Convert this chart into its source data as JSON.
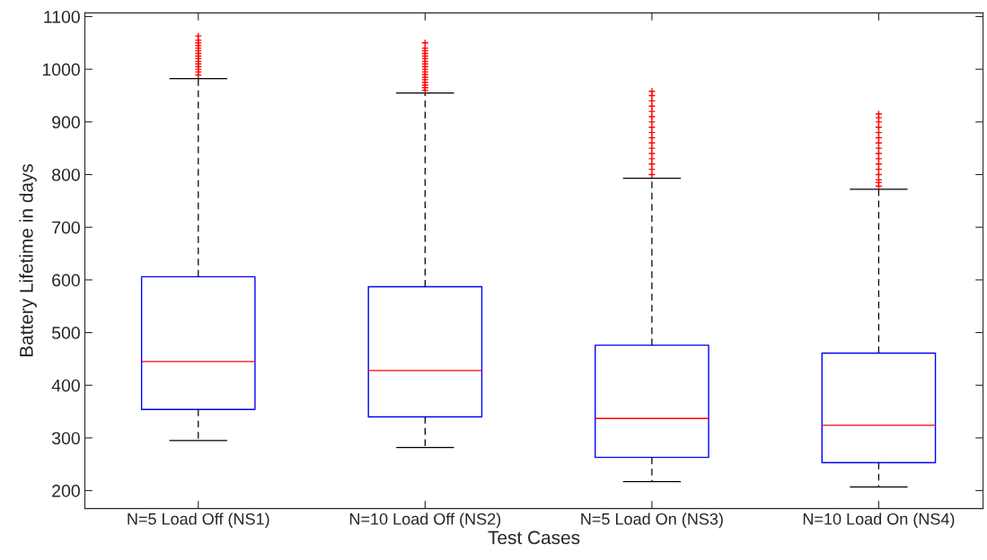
{
  "chart_data": {
    "type": "box",
    "xlabel": "Test Cases",
    "ylabel": "Battery Lifetime in days",
    "categories": [
      "N=5 Load Off (NS1)",
      "N=10 Load Off (NS2)",
      "N=5 Load On (NS3)",
      "N=10 Load On (NS4)"
    ],
    "boxes": [
      {
        "low": 295,
        "q1": 354,
        "median": 445,
        "q3": 606,
        "high": 982,
        "outliers": [
          989,
          995,
          1000,
          1005,
          1010,
          1015,
          1020,
          1025,
          1030,
          1035,
          1040,
          1045,
          1050,
          1055,
          1063
        ]
      },
      {
        "low": 282,
        "q1": 340,
        "median": 428,
        "q3": 587,
        "high": 955,
        "outliers": [
          960,
          965,
          970,
          975,
          980,
          985,
          990,
          995,
          1000,
          1005,
          1010,
          1015,
          1020,
          1025,
          1030,
          1035,
          1040,
          1050
        ]
      },
      {
        "low": 217,
        "q1": 263,
        "median": 337,
        "q3": 476,
        "high": 793,
        "outliers": [
          800,
          810,
          820,
          830,
          840,
          850,
          860,
          870,
          880,
          890,
          900,
          910,
          920,
          930,
          940,
          950,
          958
        ]
      },
      {
        "low": 207,
        "q1": 253,
        "median": 324,
        "q3": 461,
        "high": 772,
        "outliers": [
          778,
          785,
          790,
          800,
          810,
          820,
          830,
          840,
          850,
          860,
          870,
          880,
          890,
          900,
          908,
          915
        ]
      }
    ],
    "color": "#0000ff",
    "ylim": [
      166,
      1107
    ],
    "yticks": [
      200,
      300,
      400,
      500,
      600,
      700,
      800,
      900,
      1000,
      1100
    ],
    "grid": false
  }
}
